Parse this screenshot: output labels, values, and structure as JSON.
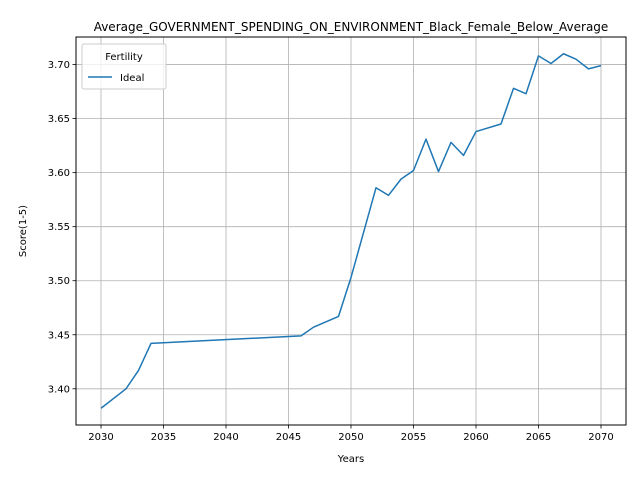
{
  "chart_data": {
    "type": "line",
    "title": "Average_GOVERNMENT_SPENDING_ON_ENVIRONMENT_Black_Female_Below_Average",
    "xlabel": "Years",
    "ylabel": "Score(1-5)",
    "xlim": [
      2028.0,
      2072.0
    ],
    "ylim": [
      3.3665,
      3.7255
    ],
    "xticks": [
      2030,
      2035,
      2040,
      2045,
      2050,
      2055,
      2060,
      2065,
      2070
    ],
    "yticks": [
      3.4,
      3.45,
      3.5,
      3.55,
      3.6,
      3.65,
      3.7
    ],
    "xtick_labels": [
      "2030",
      "2035",
      "2040",
      "2045",
      "2050",
      "2055",
      "2060",
      "2065",
      "2070"
    ],
    "ytick_labels": [
      "3.40",
      "3.45",
      "3.50",
      "3.55",
      "3.60",
      "3.65",
      "3.70"
    ],
    "grid": true,
    "legend": {
      "title": "Fertility",
      "placement": "upper-left"
    },
    "series": [
      {
        "name": "Ideal",
        "color": "#1f77b4",
        "x": [
          2030,
          2032,
          2033,
          2034,
          2046,
          2047,
          2049,
          2050,
          2052,
          2053,
          2054,
          2055,
          2056,
          2057,
          2058,
          2059,
          2060,
          2062,
          2063,
          2064,
          2065,
          2066,
          2067,
          2068,
          2069,
          2070
        ],
        "y": [
          3.382,
          3.4,
          3.417,
          3.442,
          3.449,
          3.457,
          3.467,
          3.503,
          3.586,
          3.579,
          3.594,
          3.602,
          3.631,
          3.601,
          3.628,
          3.616,
          3.638,
          3.645,
          3.678,
          3.673,
          3.708,
          3.701,
          3.71,
          3.705,
          3.696,
          3.699
        ]
      }
    ]
  }
}
